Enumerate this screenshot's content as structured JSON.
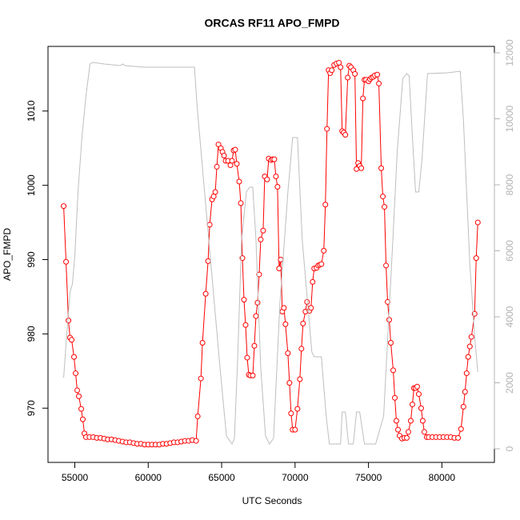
{
  "chart_data": {
    "type": "line",
    "title": "ORCAS RF11 APO_FMPD",
    "x_label": "UTC Seconds",
    "y_label": "APO_FMPD",
    "xlim": [
      53174,
      83576
    ],
    "xticks": [
      55000,
      60000,
      65000,
      70000,
      75000,
      80000
    ],
    "ylim": [
      962.7,
      1018.7
    ],
    "yticks": [
      970,
      980,
      990,
      1000,
      1010
    ],
    "y2lim": [
      -412,
      12194
    ],
    "y2ticks": [
      0,
      2000,
      4000,
      6000,
      8000,
      10000,
      12000
    ],
    "series": [
      {
        "color": "#ff0000",
        "markers": true,
        "x": [
          54240,
          54403,
          54566,
          54674,
          54783,
          54946,
          55055,
          55164,
          55272,
          55435,
          55544,
          55653,
          55761,
          56000,
          56250,
          56500,
          56750,
          57000,
          57250,
          57500,
          57750,
          58000,
          58250,
          58500,
          58750,
          59000,
          59250,
          59500,
          59750,
          60000,
          60250,
          60500,
          60750,
          61000,
          61250,
          61500,
          61750,
          62000,
          62250,
          62500,
          62750,
          63000,
          63261,
          63370,
          63587,
          63696,
          63914,
          64077,
          64185,
          64348,
          64457,
          64566,
          64674,
          64783,
          64946,
          65055,
          65163,
          65272,
          65435,
          65598,
          65707,
          65816,
          65924,
          66033,
          66196,
          66305,
          66414,
          66522,
          66631,
          66740,
          66848,
          66957,
          67120,
          67229,
          67337,
          67446,
          67555,
          67663,
          67826,
          67935,
          68098,
          68207,
          68370,
          68478,
          68587,
          68696,
          68805,
          68913,
          69022,
          69131,
          69239,
          69348,
          69511,
          69620,
          69729,
          69837,
          70000,
          70163,
          70326,
          70435,
          70544,
          70707,
          70816,
          70979,
          71087,
          71196,
          71305,
          71468,
          71576,
          71685,
          71794,
          71957,
          72066,
          72174,
          72283,
          72392,
          72500,
          72663,
          72826,
          72989,
          73098,
          73207,
          73315,
          73424,
          73587,
          73696,
          73804,
          73967,
          74076,
          74185,
          74293,
          74402,
          74511,
          74620,
          74728,
          74837,
          75000,
          75109,
          75217,
          75326,
          75435,
          75598,
          75707,
          75870,
          75978,
          76087,
          76196,
          76304,
          76413,
          76522,
          76685,
          76794,
          76902,
          77011,
          77120,
          77283,
          77446,
          77609,
          77717,
          77880,
          77989,
          78098,
          78207,
          78315,
          78424,
          78587,
          78696,
          78804,
          78967,
          79100,
          79350,
          79600,
          79850,
          80100,
          80350,
          80600,
          80850,
          81100,
          81304,
          81467,
          81576,
          81685,
          81793,
          81902,
          82011,
          82228,
          82337,
          82446
        ],
        "values": [
          997.2,
          989.7,
          981.8,
          979.5,
          979.2,
          976.9,
          974.7,
          972.4,
          971.6,
          969.9,
          968.5,
          966.6,
          966.1,
          966.1,
          966.1,
          966.0,
          966.0,
          965.9,
          965.8,
          965.8,
          965.7,
          965.6,
          965.5,
          965.4,
          965.4,
          965.3,
          965.2,
          965.2,
          965.1,
          965.1,
          965.1,
          965.1,
          965.1,
          965.2,
          965.2,
          965.3,
          965.4,
          965.4,
          965.5,
          965.6,
          965.6,
          965.7,
          965.6,
          968.9,
          974.0,
          978.8,
          985.4,
          989.8,
          994.7,
          998.1,
          998.5,
          999.1,
          1002.5,
          1005.5,
          1005.0,
          1004.5,
          1004.0,
          1003.3,
          1003.3,
          1002.7,
          1003.3,
          1004.7,
          1004.8,
          1002.9,
          1000.5,
          997.6,
          990.2,
          984.6,
          981.2,
          976.8,
          974.5,
          974.4,
          974.4,
          978.4,
          982.4,
          984.2,
          988.0,
          992.7,
          993.9,
          1001.2,
          1000.8,
          1003.6,
          1003.4,
          1003.5,
          1003.5,
          1001.2,
          999.8,
          988.8,
          990.0,
          983.0,
          983.5,
          981.3,
          977.4,
          973.4,
          969.3,
          967.1,
          967.1,
          969.9,
          973.9,
          978.0,
          981.4,
          983.0,
          984.3,
          983.1,
          983.5,
          987.0,
          988.8,
          988.9,
          989.2,
          989.3,
          989.4,
          991.2,
          997.4,
          1007.6,
          1015.5,
          1015.1,
          1015.5,
          1016.2,
          1016.4,
          1016.5,
          1015.9,
          1007.3,
          1007.1,
          1006.8,
          1014.5,
          1016.1,
          1015.9,
          1015.5,
          1015.0,
          1002.2,
          1003.0,
          1002.6,
          1002.3,
          1011.7,
          1014.2,
          1014.2,
          1014.0,
          1014.3,
          1014.5,
          1014.6,
          1014.8,
          1014.9,
          1013.7,
          1002.3,
          998.5,
          997.1,
          989.2,
          984.3,
          981.9,
          978.8,
          975.1,
          971.4,
          968.3,
          967.1,
          966.3,
          965.9,
          966.0,
          966.0,
          966.8,
          968.3,
          970.5,
          972.7,
          972.7,
          972.9,
          971.9,
          970.0,
          968.3,
          966.8,
          966.1,
          966.1,
          966.1,
          966.1,
          966.1,
          966.1,
          966.1,
          966.1,
          966.0,
          966.0,
          967.2,
          970.2,
          972.2,
          974.7,
          976.9,
          978.3,
          979.6,
          982.7,
          990.2,
          995.0
        ]
      },
      {
        "color": "#bebebe",
        "markers": false,
        "axis": "y2",
        "x": [
          54240,
          54403,
          54674,
          54837,
          55000,
          55218,
          55490,
          55761,
          56033,
          56196,
          57011,
          58098,
          58261,
          58424,
          59728,
          60815,
          61902,
          63152,
          63315,
          64076,
          64891,
          65326,
          65707,
          65870,
          66087,
          66359,
          66685,
          66902,
          67120,
          67337,
          67663,
          67989,
          68261,
          68533,
          68967,
          69511,
          69837,
          70163,
          70489,
          71142,
          71305,
          71794,
          72120,
          72337,
          72772,
          73098,
          73207,
          73424,
          73641,
          73967,
          74185,
          74402,
          74728,
          75489,
          76033,
          76576,
          76957,
          77337,
          77609,
          77772,
          77989,
          78207,
          78424,
          78641,
          79022,
          80380,
          81250,
          81467,
          81902,
          82228,
          82446
        ],
        "values": [
          2158,
          3176,
          4752,
          4995,
          5844,
          7782,
          9479,
          10691,
          11661,
          11709,
          11661,
          11612,
          11661,
          11612,
          11564,
          11564,
          11564,
          11564,
          10449,
          6570,
          2449,
          388,
          145,
          315,
          2691,
          6328,
          7782,
          7928,
          7928,
          6328,
          2449,
          388,
          145,
          315,
          4388,
          7782,
          9430,
          9430,
          6328,
          2934,
          2788,
          2788,
          994,
          145,
          145,
          145,
          1115,
          1115,
          145,
          145,
          1115,
          1115,
          145,
          145,
          994,
          5600,
          8994,
          11224,
          11370,
          11297,
          9479,
          7782,
          7782,
          8752,
          11370,
          11394,
          11442,
          9964,
          5600,
          3418,
          2328
        ]
      }
    ]
  }
}
